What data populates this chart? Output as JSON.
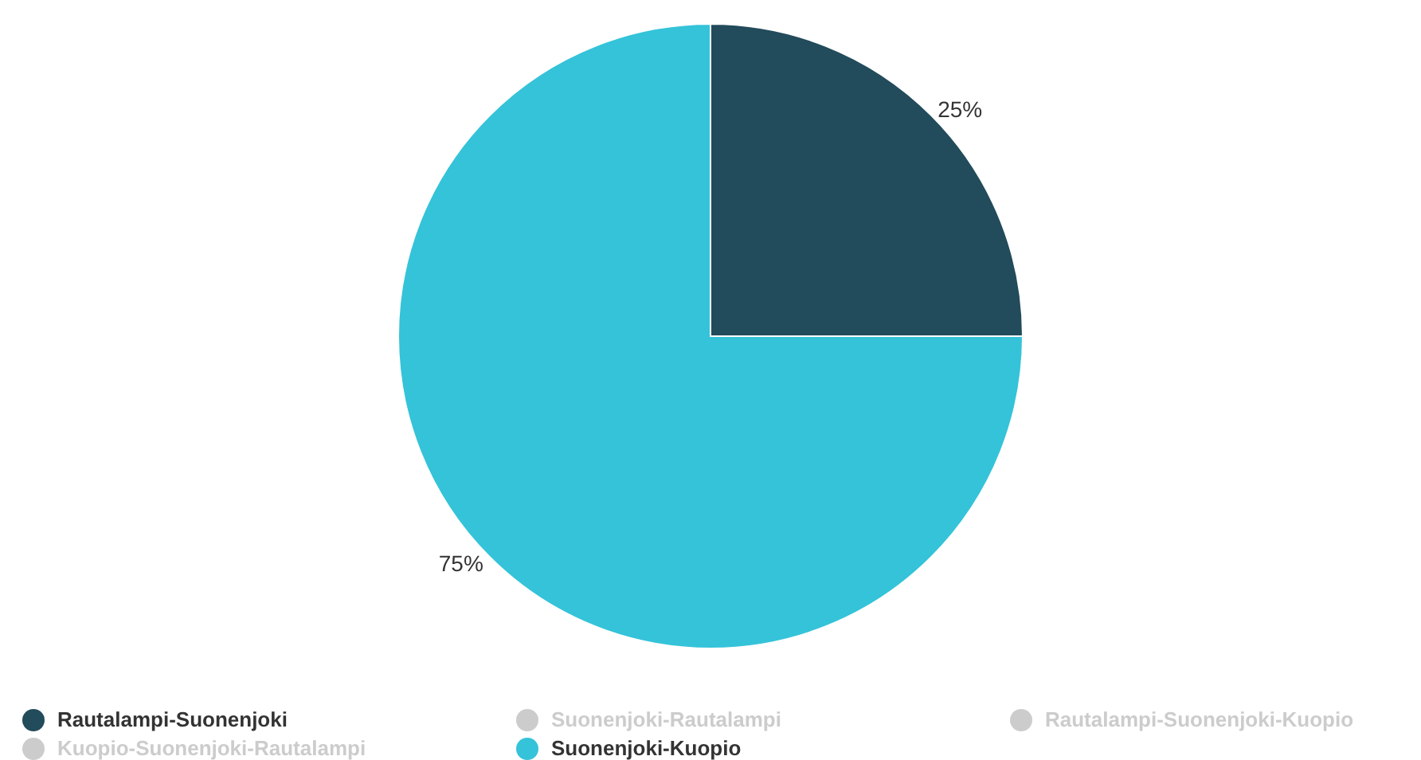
{
  "chart_data": {
    "type": "pie",
    "categories": [
      "Rautalampi-Suonenjoki",
      "Suonenjoki-Rautalampi",
      "Rautalampi-Suonenjoki-Kuopio",
      "Kuopio-Suonenjoki-Rautalampi",
      "Suonenjoki-Kuopio"
    ],
    "values": [
      25,
      null,
      null,
      null,
      75
    ],
    "value_labels": [
      "25%",
      null,
      null,
      null,
      "75%"
    ],
    "colors": [
      "#224b5b",
      "#cccccc",
      "#cccccc",
      "#cccccc",
      "#34c3d9"
    ],
    "legend": "bottom"
  }
}
